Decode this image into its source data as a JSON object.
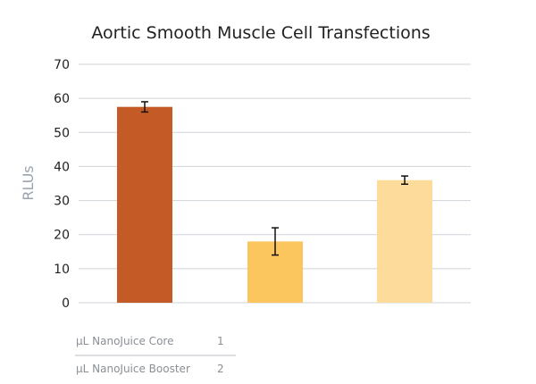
{
  "chart_data": {
    "type": "bar",
    "title": "Aortic Smooth Muscle Cell Transfections",
    "xlabel": "",
    "ylabel": "RLUs",
    "ylim": [
      0,
      70
    ],
    "yticks": [
      0,
      10,
      20,
      30,
      40,
      50,
      60,
      70
    ],
    "grid": true,
    "categories": [
      "",
      "",
      ""
    ],
    "values": [
      57.5,
      18,
      36
    ],
    "errors": [
      1.5,
      4,
      1.2
    ],
    "colors": [
      "#c45a26",
      "#fcc65e",
      "#fddc9b"
    ]
  },
  "legend_table": {
    "rows": [
      {
        "label": "µL NanoJuice Core",
        "value": "1"
      },
      {
        "label": "µL NanoJuice Booster",
        "value": "2"
      }
    ]
  },
  "colors": {
    "grid": "#cfd3d8",
    "axis_text": "#222222",
    "table_text": "#8a8f96",
    "table_line": "#b9bec4",
    "error_bar": "#111111"
  }
}
